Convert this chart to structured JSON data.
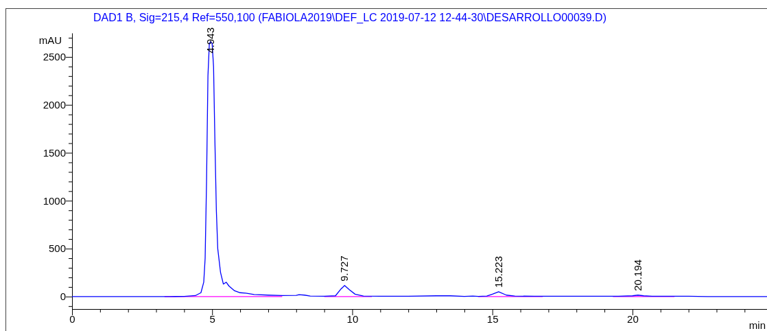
{
  "chart_data": {
    "type": "line",
    "title": "DAD1 B, Sig=215,4 Ref=550,100 (FABIOLA2019\\DEF_LC 2019-07-12 12-44-30\\DESARROLLO00039.D)",
    "xlabel": "min",
    "ylabel": "mAU",
    "xlim": [
      0,
      24.8
    ],
    "ylim": [
      -130,
      2750
    ],
    "xticks": [
      0,
      {
        "value": 1,
        "label": null
      },
      {
        "value": 2,
        "label": null
      },
      {
        "value": 3,
        "label": null
      },
      {
        "value": 4,
        "label": null
      },
      5,
      {
        "value": 6,
        "label": null
      },
      {
        "value": 7,
        "label": null
      },
      {
        "value": 8,
        "label": null
      },
      {
        "value": 9,
        "label": null
      },
      10,
      {
        "value": 11,
        "label": null
      },
      {
        "value": 12,
        "label": null
      },
      {
        "value": 13,
        "label": null
      },
      {
        "value": 14,
        "label": null
      },
      15,
      {
        "value": 16,
        "label": null
      },
      {
        "value": 17,
        "label": null
      },
      {
        "value": 18,
        "label": null
      },
      {
        "value": 19,
        "label": null
      },
      20,
      {
        "value": 21,
        "label": null
      },
      {
        "value": 22,
        "label": null
      },
      {
        "value": 23,
        "label": null
      },
      {
        "value": 24,
        "label": null
      }
    ],
    "yticks": [
      {
        "value": -100,
        "label": null
      },
      0,
      {
        "value": 100,
        "label": null
      },
      {
        "value": 200,
        "label": null
      },
      {
        "value": 300,
        "label": null
      },
      {
        "value": 400,
        "label": null
      },
      500,
      {
        "value": 600,
        "label": null
      },
      {
        "value": 700,
        "label": null
      },
      {
        "value": 800,
        "label": null
      },
      {
        "value": 900,
        "label": null
      },
      1000,
      {
        "value": 1100,
        "label": null
      },
      {
        "value": 1200,
        "label": null
      },
      {
        "value": 1300,
        "label": null
      },
      {
        "value": 1400,
        "label": null
      },
      1500,
      {
        "value": 1600,
        "label": null
      },
      {
        "value": 1700,
        "label": null
      },
      {
        "value": 1800,
        "label": null
      },
      {
        "value": 1900,
        "label": null
      },
      2000,
      {
        "value": 2100,
        "label": null
      },
      {
        "value": 2200,
        "label": null
      },
      {
        "value": 2300,
        "label": null
      },
      {
        "value": 2400,
        "label": null
      },
      2500,
      {
        "value": 2600,
        "label": null
      },
      {
        "value": 2700,
        "label": null
      }
    ],
    "grid": false,
    "marker": "none",
    "line_style": "solid",
    "series": [
      {
        "color": "#0000ff",
        "x": [
          0,
          3.5,
          4.0,
          4.4,
          4.6,
          4.7,
          4.75,
          4.8,
          4.85,
          4.9,
          4.943,
          5.0,
          5.05,
          5.1,
          5.15,
          5.2,
          5.3,
          5.4,
          5.5,
          5.6,
          5.8,
          6.0,
          6.2,
          6.5,
          7.0,
          7.5,
          8.0,
          8.1,
          8.3,
          8.5,
          9.0,
          9.4,
          9.6,
          9.727,
          9.9,
          10.1,
          10.4,
          11,
          12,
          13,
          13.5,
          14,
          14.3,
          14.5,
          14.8,
          15.0,
          15.223,
          15.5,
          15.8,
          16.5,
          19.5,
          20.0,
          20.194,
          20.4,
          20.7,
          22,
          22.7,
          24.8
        ],
        "values": [
          0,
          0,
          2,
          10,
          40,
          150,
          400,
          1200,
          2300,
          2640,
          2660,
          2640,
          2400,
          1600,
          900,
          500,
          250,
          130,
          150,
          110,
          60,
          40,
          35,
          22,
          15,
          10,
          12,
          20,
          15,
          5,
          3,
          8,
          80,
          115,
          70,
          25,
          5,
          3,
          3,
          8,
          8,
          2,
          5,
          2,
          5,
          25,
          50,
          15,
          5,
          3,
          3,
          8,
          15,
          8,
          3,
          3,
          0,
          0
        ]
      },
      {
        "color": "#ff00ff",
        "x": [
          3.3,
          7.5
        ],
        "values": [
          0,
          0
        ]
      },
      {
        "color": "#ff00ff",
        "x": [
          9.0,
          10.7
        ],
        "values": [
          0,
          0
        ]
      },
      {
        "color": "#ff00ff",
        "x": [
          14.5,
          16.8
        ],
        "values": [
          0,
          0
        ]
      },
      {
        "color": "#ff00ff",
        "x": [
          19.3,
          21.5
        ],
        "values": [
          0,
          0
        ]
      }
    ],
    "annotations": [
      {
        "text": "4.943",
        "x": 4.943,
        "y": 2660
      },
      {
        "text": "9.727",
        "x": 9.727,
        "y": 115
      },
      {
        "text": "15.223",
        "x": 15.223,
        "y": 50
      },
      {
        "text": "20.194",
        "x": 20.194,
        "y": 15
      }
    ]
  }
}
